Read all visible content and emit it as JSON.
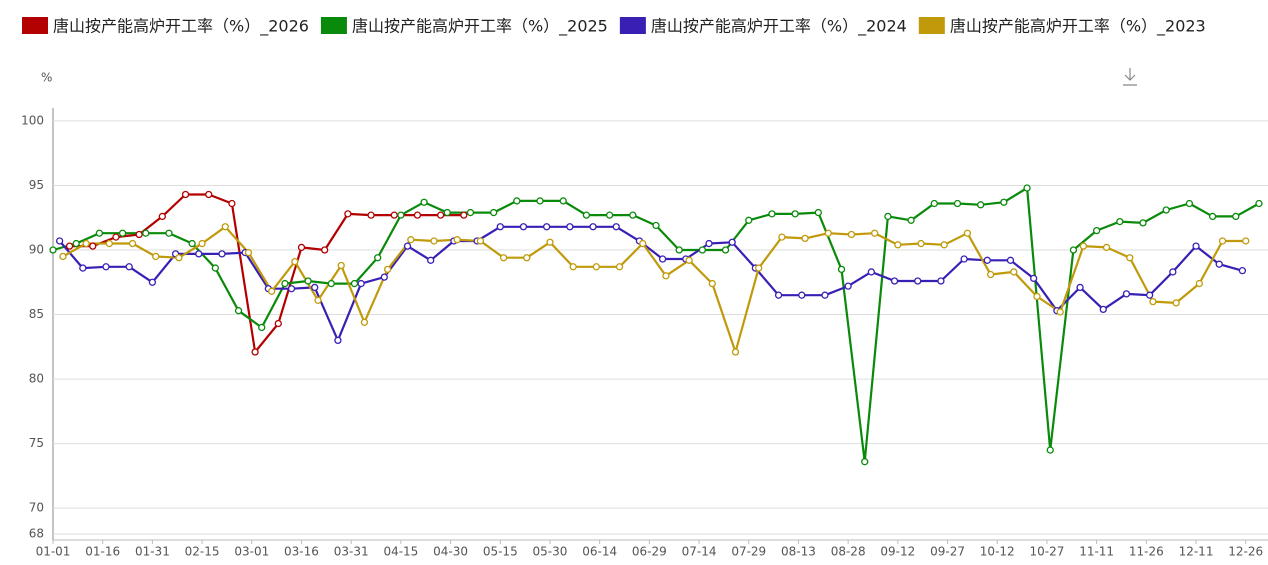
{
  "chart_data": {
    "type": "line",
    "y_unit": "%",
    "xlim": [
      0,
      366
    ],
    "xticks": [
      {
        "value": 0,
        "label": "01-01"
      },
      {
        "value": 15,
        "label": "01-16"
      },
      {
        "value": 30,
        "label": "01-31"
      },
      {
        "value": 45,
        "label": "02-15"
      },
      {
        "value": 60,
        "label": "03-01"
      },
      {
        "value": 75,
        "label": "03-16"
      },
      {
        "value": 90,
        "label": "03-31"
      },
      {
        "value": 105,
        "label": "04-15"
      },
      {
        "value": 120,
        "label": "04-30"
      },
      {
        "value": 135,
        "label": "05-15"
      },
      {
        "value": 150,
        "label": "05-30"
      },
      {
        "value": 165,
        "label": "06-14"
      },
      {
        "value": 180,
        "label": "06-29"
      },
      {
        "value": 195,
        "label": "07-14"
      },
      {
        "value": 210,
        "label": "07-29"
      },
      {
        "value": 225,
        "label": "08-13"
      },
      {
        "value": 240,
        "label": "08-28"
      },
      {
        "value": 255,
        "label": "09-12"
      },
      {
        "value": 270,
        "label": "09-27"
      },
      {
        "value": 285,
        "label": "10-12"
      },
      {
        "value": 300,
        "label": "10-27"
      },
      {
        "value": 315,
        "label": "11-11"
      },
      {
        "value": 330,
        "label": "11-26"
      },
      {
        "value": 345,
        "label": "12-11"
      },
      {
        "value": 360,
        "label": "12-26"
      }
    ],
    "ylim": [
      68,
      101
    ],
    "yticks": [
      68,
      70,
      75,
      80,
      85,
      90,
      95,
      100
    ],
    "grid": true,
    "series": [
      {
        "name": "唐山按产能高炉开工率（%）_2026",
        "color": "#b30000",
        "x": [
          5,
          12,
          19,
          26,
          33,
          40,
          47,
          54,
          61,
          68,
          75,
          82,
          89,
          96,
          103,
          110,
          117,
          124
        ],
        "values": [
          90.3,
          90.3,
          91.0,
          91.2,
          92.6,
          94.3,
          94.3,
          93.6,
          82.1,
          84.3,
          90.2,
          90.0,
          92.8,
          92.7,
          92.7,
          92.7,
          92.7,
          92.7
        ]
      },
      {
        "name": "唐山按产能高炉开工率（%）_2025",
        "color": "#0a8a0a",
        "x": [
          0,
          7,
          14,
          21,
          28,
          35,
          42,
          49,
          56,
          63,
          70,
          77,
          84,
          91,
          98,
          105,
          112,
          119,
          126,
          133,
          140,
          147,
          154,
          161,
          168,
          175,
          182,
          189,
          196,
          203,
          210,
          217,
          224,
          231,
          238,
          245,
          252,
          259,
          266,
          273,
          280,
          287,
          294,
          301,
          308,
          315,
          322,
          329,
          336,
          343,
          350,
          357,
          364
        ],
        "values": [
          90.0,
          90.5,
          91.3,
          91.3,
          91.3,
          91.3,
          90.5,
          88.6,
          85.3,
          84.0,
          87.4,
          87.6,
          87.4,
          87.4,
          89.4,
          92.7,
          93.7,
          92.9,
          92.9,
          92.9,
          93.8,
          93.8,
          93.8,
          92.7,
          92.7,
          92.7,
          91.9,
          90.0,
          90.0,
          90.0,
          92.3,
          92.8,
          92.8,
          92.9,
          88.5,
          73.6,
          92.6,
          92.3,
          93.6,
          93.6,
          93.5,
          93.7,
          94.8,
          74.5,
          90.0,
          91.5,
          92.2,
          92.1,
          93.1,
          93.6,
          92.6,
          92.6,
          93.6
        ]
      },
      {
        "name": "唐山按产能高炉开工率（%）_2024",
        "color": "#3a1fb5",
        "x": [
          2,
          9,
          16,
          23,
          30,
          37,
          44,
          51,
          58,
          65,
          72,
          79,
          86,
          93,
          100,
          107,
          114,
          121,
          128,
          135,
          142,
          149,
          156,
          163,
          170,
          177,
          184,
          191,
          198,
          205,
          212,
          219,
          226,
          233,
          240,
          247,
          254,
          261,
          268,
          275,
          282,
          289,
          296,
          303,
          310,
          317,
          324,
          331,
          338,
          345,
          352,
          359
        ],
        "values": [
          90.7,
          88.6,
          88.7,
          88.7,
          87.5,
          89.7,
          89.7,
          89.7,
          89.8,
          87.0,
          87.0,
          87.1,
          83.0,
          87.4,
          87.9,
          90.3,
          89.2,
          90.7,
          90.7,
          91.8,
          91.8,
          91.8,
          91.8,
          91.8,
          91.8,
          90.7,
          89.3,
          89.3,
          90.5,
          90.6,
          88.6,
          86.5,
          86.5,
          86.5,
          87.2,
          88.3,
          87.6,
          87.6,
          87.6,
          89.3,
          89.2,
          89.2,
          87.8,
          85.3,
          87.1,
          85.4,
          86.6,
          86.5,
          88.3,
          90.3,
          88.9,
          88.4
        ]
      },
      {
        "name": "唐山按产能高炉开工率（%）_2023",
        "color": "#c09a0a",
        "x": [
          3,
          10,
          17,
          24,
          31,
          38,
          45,
          52,
          59,
          66,
          73,
          80,
          87,
          94,
          101,
          108,
          115,
          122,
          129,
          136,
          143,
          150,
          157,
          164,
          171,
          178,
          185,
          192,
          199,
          206,
          213,
          220,
          227,
          234,
          241,
          248,
          255,
          262,
          269,
          276,
          283,
          290,
          297,
          304,
          311,
          318,
          325,
          332,
          339,
          346,
          353,
          360
        ],
        "values": [
          89.5,
          90.5,
          90.5,
          90.5,
          89.5,
          89.4,
          90.5,
          91.8,
          89.8,
          86.8,
          89.1,
          86.1,
          88.8,
          84.4,
          88.5,
          90.8,
          90.7,
          90.8,
          90.7,
          89.4,
          89.4,
          90.6,
          88.7,
          88.7,
          88.7,
          90.5,
          88.0,
          89.2,
          87.4,
          82.1,
          88.6,
          91.0,
          90.9,
          91.3,
          91.2,
          91.3,
          90.4,
          90.5,
          90.4,
          91.3,
          88.1,
          88.3,
          86.4,
          85.2,
          90.3,
          90.2,
          89.4,
          86.0,
          85.9,
          87.4,
          90.7,
          90.7
        ]
      }
    ]
  }
}
